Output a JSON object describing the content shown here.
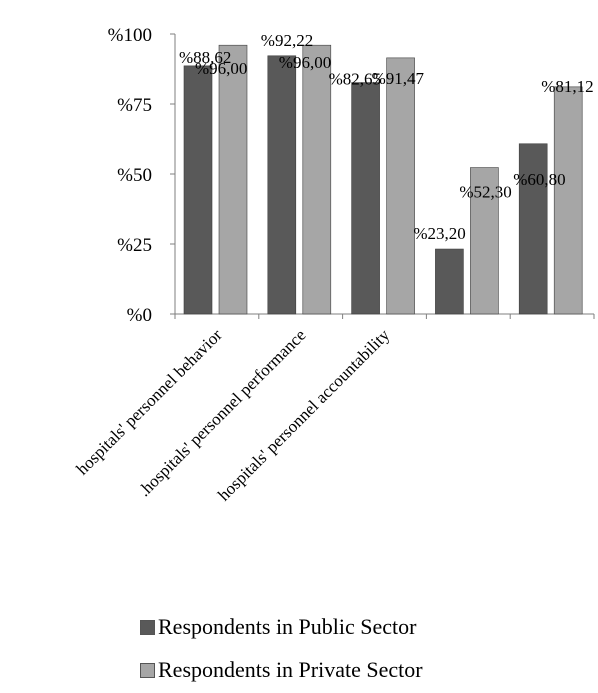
{
  "chart_data": {
    "type": "bar",
    "title": "",
    "xlabel": "",
    "ylabel": "",
    "ylim": [
      0,
      100
    ],
    "yticks": [
      {
        "value": 0,
        "label": "%0"
      },
      {
        "value": 25,
        "label": "%25"
      },
      {
        "value": 50,
        "label": "%50"
      },
      {
        "value": 75,
        "label": "%75"
      },
      {
        "value": 100,
        "label": "%100"
      }
    ],
    "categories": [
      "hospitals' personnel behavior",
      ".hospitals' personnel performance",
      "hospitals' personnel accountability",
      "",
      ""
    ],
    "series": [
      {
        "name": "Respondents in Public Sector",
        "color": "#595959",
        "values": [
          88.62,
          92.22,
          82.65,
          23.2,
          60.8
        ],
        "labels": [
          "%88,62",
          "%92,22",
          "%82,65",
          "%23,20",
          "%60,80"
        ]
      },
      {
        "name": "Respondents in Private Sector",
        "color": "#a6a6a6",
        "values": [
          96.0,
          96.0,
          91.47,
          52.3,
          81.12
        ],
        "labels": [
          "%96,00",
          "%96,00",
          "%91,47",
          "%52,30",
          "%81,12"
        ]
      }
    ],
    "grid": false,
    "legend_position": "bottom"
  }
}
